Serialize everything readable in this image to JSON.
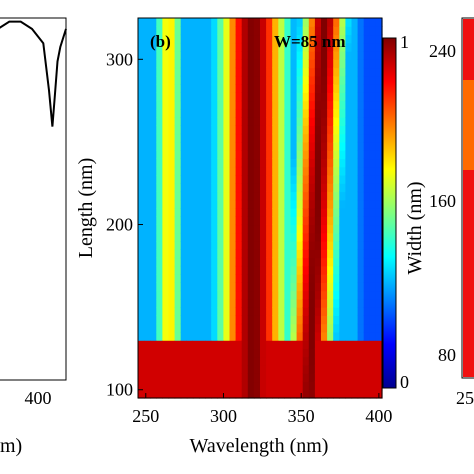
{
  "chart_data": [
    {
      "panel": "left",
      "type": "line",
      "xlim": [
        300,
        420
      ],
      "x_ticks": [
        400
      ],
      "xlabel_fragment": "m)",
      "series": [
        {
          "x": [
            300,
            320,
            340,
            360,
            370,
            380,
            390,
            396,
            400,
            405,
            410,
            420
          ],
          "y": [
            0.97,
            0.99,
            0.99,
            0.97,
            0.95,
            0.93,
            0.8,
            0.7,
            0.78,
            0.88,
            0.92,
            0.97
          ]
        }
      ]
    },
    {
      "panel": "center",
      "type": "heatmap",
      "panel_label": "(b)",
      "annotation": "W=85 nm",
      "xlabel": "Wavelength (nm)",
      "ylabel": "Length (nm)",
      "xlim": [
        245,
        402
      ],
      "ylim": [
        95,
        325
      ],
      "x_ticks": [
        "250",
        "300",
        "350",
        "400"
      ],
      "y_ticks": [
        "100",
        "200",
        "300"
      ],
      "colorbar": {
        "min_label": "0",
        "max_label": "1",
        "range": [
          0,
          1
        ],
        "colormap": "jet"
      },
      "bands": [
        {
          "center": 319,
          "width": 24,
          "amp": 1.0,
          "drift": 0
        },
        {
          "center": 355,
          "width": 15,
          "amp": 1.0,
          "drift": 10
        },
        {
          "center": 265,
          "width": 10,
          "amp": 0.65,
          "drift": 0
        }
      ]
    },
    {
      "panel": "right",
      "type": "heatmap",
      "ylabel": "Width (nm)",
      "y_ticks": [
        "240",
        "160",
        "80"
      ],
      "x_ticks": [
        "25"
      ],
      "ylim": [
        60,
        250
      ]
    }
  ]
}
